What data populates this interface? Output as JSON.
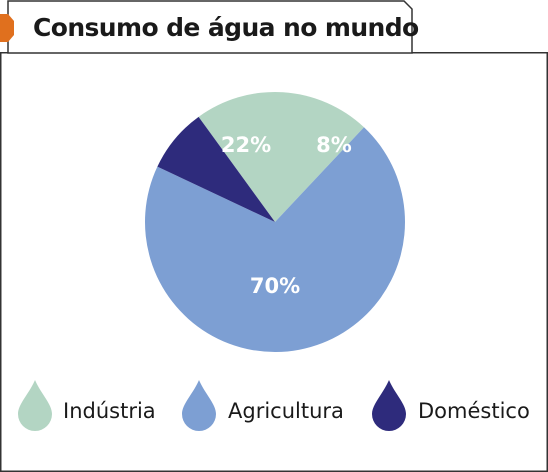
{
  "title": "Consumo de água no mundo",
  "colors": {
    "accent_tab": "#e0701e",
    "border": "#333333",
    "industria": "#b3d5c3",
    "agricultura": "#7d9fd3",
    "domestico": "#2e2b7c",
    "label_text": "#ffffff"
  },
  "chart_data": {
    "type": "pie",
    "title": "Consumo de água no mundo",
    "slices": [
      {
        "name": "Indústria",
        "value": 22,
        "label": "22%",
        "color": "#b3d5c3"
      },
      {
        "name": "Agricultura",
        "value": 70,
        "label": "70%",
        "color": "#7d9fd3"
      },
      {
        "name": "Doméstico",
        "value": 8,
        "label": "8%",
        "color": "#2e2b7c"
      }
    ],
    "legend_position": "bottom",
    "legend_icon": "water-drop-icon"
  }
}
